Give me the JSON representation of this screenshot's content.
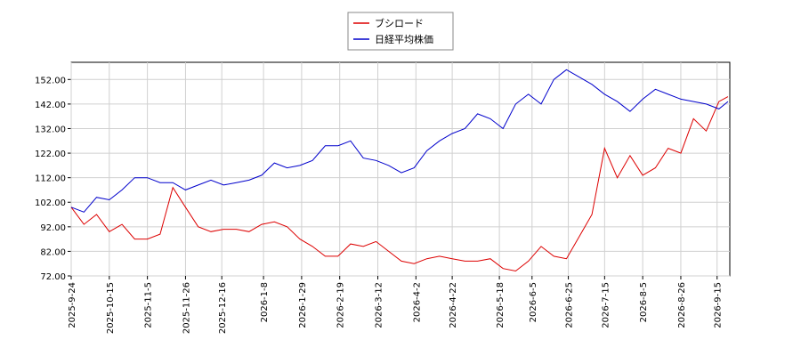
{
  "chart_data": {
    "type": "line",
    "x": [
      "2025-09-24",
      "2025-10-01",
      "2025-10-08",
      "2025-10-15",
      "2025-10-22",
      "2025-10-29",
      "2025-11-05",
      "2025-11-12",
      "2025-11-19",
      "2025-11-26",
      "2025-12-03",
      "2025-12-10",
      "2025-12-17",
      "2025-12-24",
      "2025-12-31",
      "2026-01-07",
      "2026-01-14",
      "2026-01-21",
      "2026-01-28",
      "2026-02-04",
      "2026-02-11",
      "2026-02-18",
      "2026-02-25",
      "2026-03-04",
      "2026-03-11",
      "2026-03-18",
      "2026-03-25",
      "2026-04-01",
      "2026-04-08",
      "2026-04-15",
      "2026-04-22",
      "2026-04-29",
      "2026-05-06",
      "2026-05-13",
      "2026-05-20",
      "2026-05-27",
      "2026-06-03",
      "2026-06-10",
      "2026-06-17",
      "2026-06-24",
      "2026-07-01",
      "2026-07-08",
      "2026-07-15",
      "2026-07-22",
      "2026-07-29",
      "2026-08-05",
      "2026-08-12",
      "2026-08-19",
      "2026-08-26",
      "2026-09-02",
      "2026-09-09",
      "2026-09-16",
      "2026-09-21"
    ],
    "series": [
      {
        "name": "ブシロード",
        "color": "#dd0000",
        "values": [
          100,
          93,
          97,
          90,
          93,
          87,
          87,
          89,
          108,
          100,
          92,
          90,
          91,
          91,
          90,
          93,
          94,
          92,
          87,
          84,
          80,
          80,
          85,
          84,
          86,
          82,
          78,
          77,
          79,
          80,
          79,
          78,
          78,
          79,
          75,
          74,
          78,
          84,
          80,
          79,
          88,
          97,
          124,
          112,
          121,
          113,
          116,
          124,
          122,
          136,
          131,
          143,
          145
        ]
      },
      {
        "name": "日経平均株価",
        "color": "#0000cc",
        "values": [
          100,
          98,
          104,
          103,
          107,
          112,
          112,
          110,
          110,
          107,
          109,
          111,
          109,
          110,
          111,
          113,
          118,
          116,
          117,
          119,
          125,
          125,
          127,
          120,
          119,
          117,
          114,
          116,
          123,
          127,
          130,
          132,
          138,
          136,
          132,
          142,
          146,
          142,
          152,
          156,
          153,
          150,
          146,
          143,
          139,
          144,
          148,
          146,
          144,
          143,
          142,
          140,
          143
        ]
      }
    ],
    "xlim": [
      "2025-09-24",
      "2026-09-22"
    ],
    "xticks": [
      {
        "value": "2025-09-24",
        "label": "2025-9-24"
      },
      {
        "value": "2025-10-15",
        "label": "2025-10-15"
      },
      {
        "value": "2025-11-05",
        "label": "2025-11-5"
      },
      {
        "value": "2025-11-26",
        "label": "2025-11-26"
      },
      {
        "value": "2025-12-16",
        "label": "2025-12-16"
      },
      {
        "value": "2026-01-08",
        "label": "2026-1-8"
      },
      {
        "value": "2026-01-29",
        "label": "2026-1-29"
      },
      {
        "value": "2026-02-19",
        "label": "2026-2-19"
      },
      {
        "value": "2026-03-12",
        "label": "2026-3-12"
      },
      {
        "value": "2026-04-02",
        "label": "2026-4-2"
      },
      {
        "value": "2026-04-22",
        "label": "2026-4-22"
      },
      {
        "value": "2026-05-18",
        "label": "2026-5-18"
      },
      {
        "value": "2026-06-05",
        "label": "2026-6-5"
      },
      {
        "value": "2026-06-25",
        "label": "2026-6-25"
      },
      {
        "value": "2026-07-15",
        "label": "2026-7-15"
      },
      {
        "value": "2026-08-05",
        "label": "2026-8-5"
      },
      {
        "value": "2026-08-26",
        "label": "2026-8-26"
      },
      {
        "value": "2026-09-15",
        "label": "2026-9-15"
      }
    ],
    "ylim": [
      72,
      159
    ],
    "yticks": [
      {
        "value": 72,
        "label": "72.00"
      },
      {
        "value": 82,
        "label": "82.00"
      },
      {
        "value": 92,
        "label": "92.00"
      },
      {
        "value": 102,
        "label": "102.00"
      },
      {
        "value": 112,
        "label": "112.00"
      },
      {
        "value": 122,
        "label": "122.00"
      },
      {
        "value": 132,
        "label": "132.00"
      },
      {
        "value": 142,
        "label": "142.00"
      },
      {
        "value": 152,
        "label": "152.00"
      }
    ],
    "grid": true,
    "legend": "top"
  }
}
